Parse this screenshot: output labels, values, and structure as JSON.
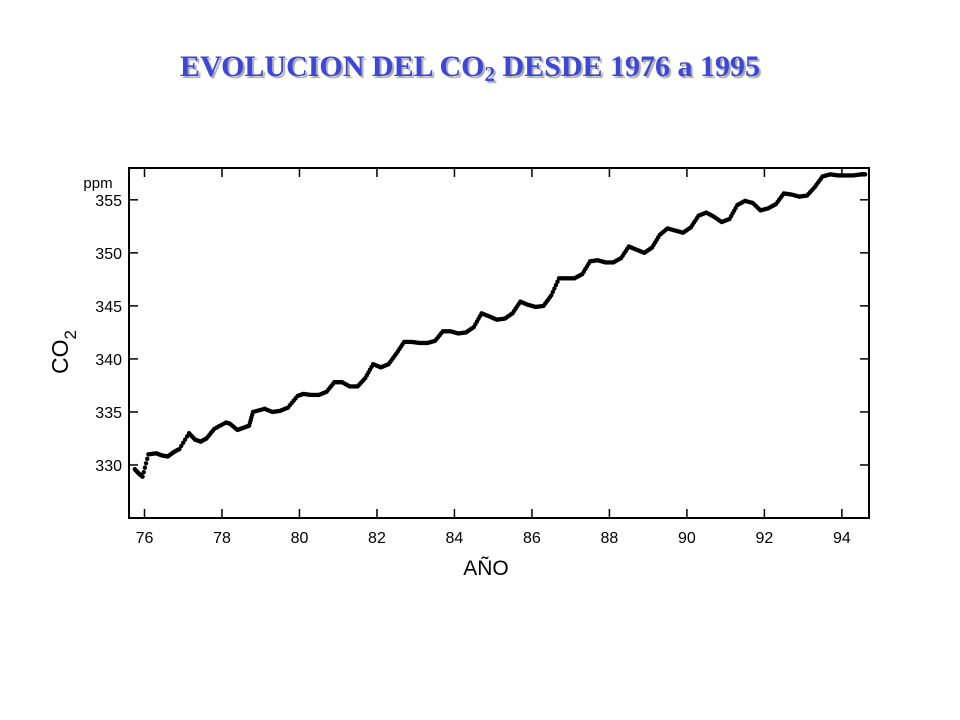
{
  "slide": {
    "title_main": "EVOLUCION DEL CO",
    "title_sub": "2",
    "title_rest": " DESDE 1976 a 1995",
    "title_color": "#3c46d8"
  },
  "chart_data": {
    "type": "scatter",
    "xlabel": "AÑO",
    "ylabel_main": "CO",
    "ylabel_sub": "2",
    "yunit": "ppm",
    "xlim": [
      75.6,
      94.7
    ],
    "ylim": [
      325,
      358
    ],
    "xticks": [
      76,
      78,
      80,
      82,
      84,
      86,
      88,
      90,
      92,
      94
    ],
    "xtick_labels": [
      "76",
      "78",
      "80",
      "82",
      "84",
      "86",
      "88",
      "90",
      "92",
      "94"
    ],
    "yticks": [
      330,
      335,
      340,
      345,
      350,
      355
    ],
    "ytick_labels": [
      "330",
      "335",
      "340",
      "345",
      "350",
      "355"
    ],
    "grid": false,
    "marker_color": "#000000",
    "series": [
      {
        "x": [
          75.75,
          75.85,
          75.95,
          76.1,
          76.3,
          76.45,
          76.6,
          76.75,
          76.9,
          77.15,
          77.3,
          77.45,
          77.6,
          77.8,
          78.1,
          78.2,
          78.4,
          78.55,
          78.7,
          78.8,
          79.1,
          79.3,
          79.5,
          79.7,
          79.95,
          80.1,
          80.3,
          80.5,
          80.7,
          80.9,
          81.1,
          81.3,
          81.5,
          81.7,
          81.9,
          82.1,
          82.3,
          82.5,
          82.7,
          82.9,
          83.1,
          83.3,
          83.5,
          83.7,
          83.9,
          84.1,
          84.3,
          84.5,
          84.7,
          84.9,
          85.1,
          85.3,
          85.5,
          85.7,
          85.9,
          86.1,
          86.3,
          86.5,
          86.7,
          86.9,
          87.1,
          87.3,
          87.5,
          87.7,
          87.9,
          88.1,
          88.3,
          88.5,
          88.7,
          88.9,
          89.1,
          89.3,
          89.5,
          89.7,
          89.9,
          90.1,
          90.3,
          90.5,
          90.7,
          90.9,
          91.1,
          91.3,
          91.5,
          91.7,
          91.9,
          92.1,
          92.3,
          92.5,
          92.7,
          92.9,
          93.1,
          93.3,
          93.5,
          93.7,
          93.9,
          94.1,
          94.3,
          94.5,
          94.6
        ],
        "y": [
          329.6,
          329.2,
          328.9,
          331.0,
          331.1,
          330.9,
          330.8,
          331.2,
          331.5,
          333.0,
          332.4,
          332.2,
          332.5,
          333.4,
          334.0,
          333.9,
          333.3,
          333.5,
          333.7,
          335.0,
          335.3,
          335.0,
          335.1,
          335.4,
          336.5,
          336.7,
          336.6,
          336.6,
          336.9,
          337.8,
          337.8,
          337.4,
          337.4,
          338.2,
          339.5,
          339.2,
          339.5,
          340.5,
          341.6,
          341.6,
          341.5,
          341.5,
          341.7,
          342.6,
          342.6,
          342.4,
          342.5,
          343.0,
          344.3,
          344.0,
          343.7,
          343.8,
          344.3,
          345.4,
          345.1,
          344.9,
          345.0,
          346.0,
          347.6,
          347.6,
          347.6,
          348.0,
          349.2,
          349.3,
          349.1,
          349.1,
          349.5,
          350.6,
          350.3,
          350.0,
          350.5,
          351.7,
          352.3,
          352.1,
          351.9,
          352.4,
          353.5,
          353.8,
          353.4,
          352.9,
          353.2,
          354.5,
          354.9,
          354.7,
          354.0,
          354.2,
          354.6,
          355.6,
          355.5,
          355.3,
          355.4,
          356.2,
          357.2,
          357.4,
          357.3,
          357.3,
          357.3,
          357.4,
          357.4
        ]
      }
    ]
  }
}
